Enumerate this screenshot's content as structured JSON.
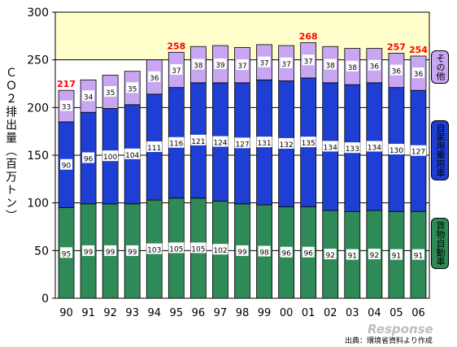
{
  "chart_data": {
    "type": "bar",
    "stacked": true,
    "ylabel": "ＣＯ２排出量（百万トン）",
    "ylim": [
      0,
      300
    ],
    "yticks": [
      0,
      50,
      100,
      150,
      200,
      250,
      300
    ],
    "categories": [
      "90",
      "91",
      "92",
      "93",
      "94",
      "95",
      "96",
      "97",
      "98",
      "99",
      "00",
      "01",
      "02",
      "03",
      "04",
      "05",
      "06"
    ],
    "series": [
      {
        "name": "貨物自動車",
        "color": "#2e8b57",
        "values": [
          95,
          99,
          99,
          99,
          103,
          105,
          105,
          102,
          99,
          98,
          96,
          96,
          92,
          91,
          92,
          91,
          91
        ]
      },
      {
        "name": "自家用乗用車",
        "color": "#1f3fd4",
        "values": [
          90,
          96,
          100,
          104,
          111,
          116,
          121,
          124,
          127,
          131,
          132,
          135,
          134,
          133,
          134,
          130,
          127
        ]
      },
      {
        "name": "その他",
        "color": "#c9a6f2",
        "values": [
          33,
          34,
          35,
          35,
          36,
          37,
          38,
          39,
          37,
          37,
          37,
          37,
          38,
          38,
          36,
          36,
          36
        ]
      }
    ],
    "total_labels": [
      {
        "category": "90",
        "value": "217"
      },
      {
        "category": "95",
        "value": "258"
      },
      {
        "category": "01",
        "value": "268"
      },
      {
        "category": "05",
        "value": "257"
      },
      {
        "category": "06",
        "value": "254"
      }
    ],
    "reference_line": 250,
    "grid": true,
    "legend": "right",
    "total_label_color": "#ff0000",
    "highlight_band_color": "#ffffcc"
  },
  "source_note": "出典：環境省資料より作成",
  "watermark": "Response"
}
